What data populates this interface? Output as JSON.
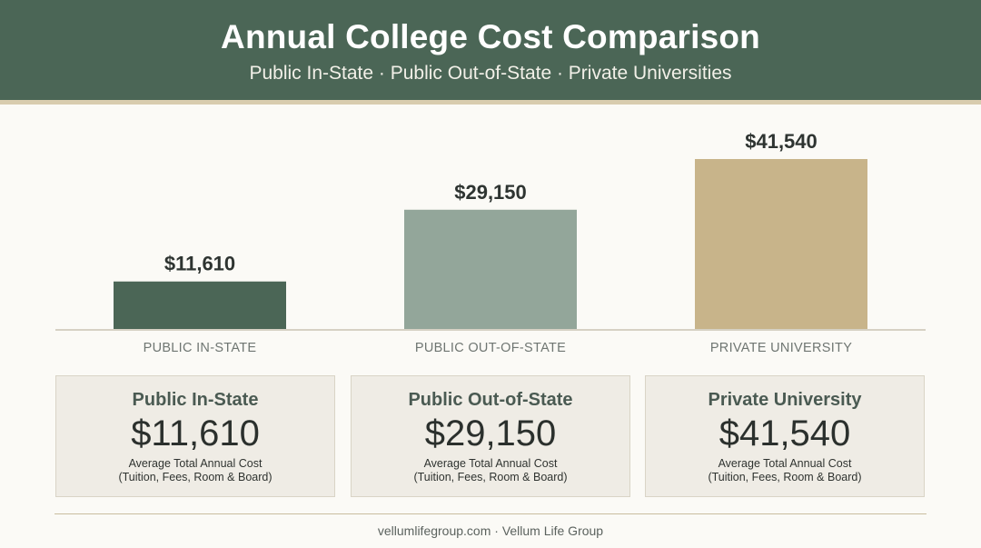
{
  "header": {
    "title": "Annual College Cost Comparison",
    "subtitle": "Public In-State · Public Out-of-State · Private Universities"
  },
  "colors": {
    "header_bg": "#4b6656",
    "public_in_state": "#4b6656",
    "public_out_of_state": "#93a69a",
    "private_university": "#c8b48a"
  },
  "chart_data": {
    "type": "bar",
    "title": "",
    "xlabel": "",
    "ylabel": "",
    "categories": [
      "PUBLIC IN-STATE",
      "PUBLIC OUT-OF-STATE",
      "PRIVATE UNIVERSITY"
    ],
    "values": [
      11610,
      29150,
      41540
    ],
    "value_labels": [
      "$11,610",
      "$29,150",
      "$41,540"
    ],
    "colors": [
      "#4b6656",
      "#93a69a",
      "#c8b48a"
    ],
    "grid": false
  },
  "cards": [
    {
      "name": "Public In-State",
      "value": "$11,610",
      "desc_line1": "Average Total Annual Cost",
      "desc_line2": "(Tuition, Fees, Room & Board)"
    },
    {
      "name": "Public Out-of-State",
      "value": "$29,150",
      "desc_line1": "Average Total Annual Cost",
      "desc_line2": "(Tuition, Fees, Room & Board)"
    },
    {
      "name": "Private University",
      "value": "$41,540",
      "desc_line1": "Average Total Annual Cost",
      "desc_line2": "(Tuition, Fees, Room & Board)"
    }
  ],
  "footer": {
    "text": "vellumlifegroup.com · Vellum Life Group"
  }
}
